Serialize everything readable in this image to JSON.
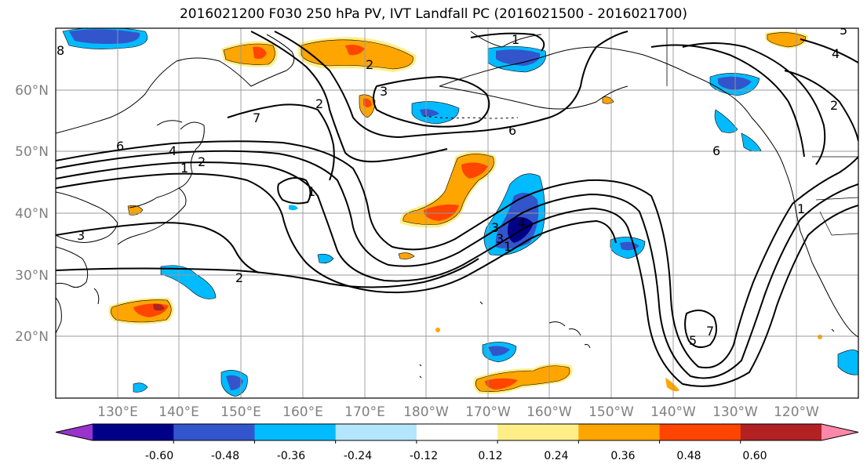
{
  "title": "2016021200 F030 250 hPa PV, IVT Landfall PC (2016021500 - 2016021700)",
  "lat_labels": [
    "60°N",
    "50°N",
    "40°N",
    "30°N",
    "20°N"
  ],
  "lon_labels": [
    "130°E",
    "140°E",
    "150°E",
    "160°E",
    "170°E",
    "180°W",
    "170°W",
    "160°W",
    "150°W",
    "140°W",
    "130°W",
    "120°W"
  ],
  "contour_labels": [
    "8",
    "6",
    "4",
    "1",
    "2",
    "3",
    "7",
    "3",
    "6",
    "2",
    "1",
    "6",
    "1",
    "2",
    "3",
    "2",
    "4",
    "1",
    "5",
    "4",
    "3",
    "2",
    "1",
    "7",
    "5"
  ],
  "colorbar": {
    "colors": [
      "#9933cc",
      "#000088",
      "#3355cc",
      "#00bbff",
      "#b3e5fc",
      "#ffffff",
      "#ffee88",
      "#ffa500",
      "#ff4500",
      "#b22222",
      "#ff88aa"
    ],
    "tick_labels": [
      "-0.60",
      "-0.48",
      "-0.36",
      "-0.24",
      "-0.12",
      "0.12",
      "0.24",
      "0.36",
      "0.48",
      "0.60"
    ]
  },
  "colors": {
    "grid": "#999999",
    "coast": "#000000",
    "contour": "#000000",
    "axis_label": "#808080"
  }
}
